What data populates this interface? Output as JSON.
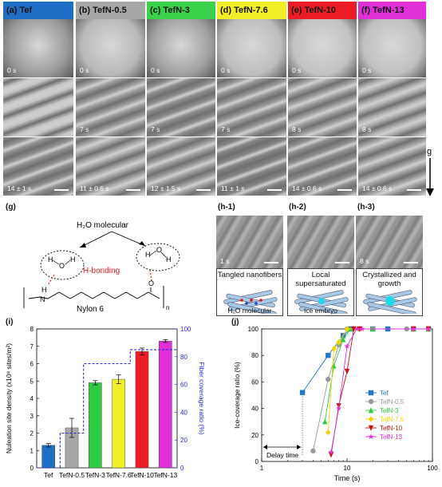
{
  "top_panels": {
    "headers": [
      {
        "label": "(a)   Tef",
        "color": "#1f6ec5"
      },
      {
        "label": "(b) TefN-0.5",
        "color": "#a7a7a7"
      },
      {
        "label": "(c) TefN-3",
        "color": "#39d24a"
      },
      {
        "label": "(d) TefN-7.6",
        "color": "#f2ee27"
      },
      {
        "label": "(e) TefN-10",
        "color": "#ec1c24"
      },
      {
        "label": "(f) TefN-13",
        "color": "#e02fd8"
      }
    ],
    "row0_times": [
      "0 s",
      "0 s",
      "0 s",
      "0 s",
      "0 s",
      "0 s"
    ],
    "row1_times": [
      "",
      "7 s",
      "7 s",
      "7 s",
      "8 s",
      "8 s"
    ],
    "row2_times": [
      "14 ± 1 s",
      "11 ± 0.6 s",
      "12 ± 1.5 s",
      "11 ± 1 s",
      "14 ± 0.6 s",
      "14 ± 0.6 s"
    ],
    "gravity_label": "g"
  },
  "panel_g": {
    "label": "(g)",
    "h2o_label": "H₂O molecular",
    "hbond_label": "H-bonding",
    "polymer_label": "Nylon 6",
    "n_label": "n"
  },
  "panel_h": {
    "labels": [
      "(h-1)",
      "(h-2)",
      "(h-3)"
    ],
    "times": [
      "1 s",
      "",
      "8 s"
    ],
    "h1_caption": "Tangled nanofibers",
    "h1_sub": "H₂O molecular",
    "h2_caption": "Local supersaturated",
    "h2_sub": "Ice embryo",
    "h3_caption": "Crystallized and growth"
  },
  "panel_i": {
    "label": "(i)",
    "chart_data": {
      "type": "bar",
      "categories": [
        "Tef",
        "TefN-0.5",
        "TefN-3",
        "TefN-7.6",
        "TefN-10",
        "TefN-13"
      ],
      "values": [
        1.3,
        2.3,
        4.9,
        5.1,
        6.7,
        7.3
      ],
      "errors": [
        0.1,
        0.55,
        0.12,
        0.25,
        0.2,
        0.08
      ],
      "colors": [
        "#1f6ec5",
        "#a7a7a7",
        "#2ecc40",
        "#f2ee27",
        "#ec1c24",
        "#e02fd8"
      ],
      "ylabel": "Nulеation site density (x10⁸ sites/m²)",
      "ylim": [
        0,
        8
      ],
      "yticks": [
        "0",
        "1",
        "2",
        "3",
        "4",
        "5",
        "6",
        "7",
        "8"
      ],
      "y2label": "Fiber coverage ratio (%)",
      "y2lim": [
        0,
        100
      ],
      "y2ticks": [
        "0",
        "20",
        "40",
        "60",
        "80",
        "100"
      ],
      "coverage": [
        0,
        25,
        75,
        75,
        85,
        85
      ]
    }
  },
  "panel_j": {
    "label": "(j)",
    "chart_data": {
      "type": "scatter",
      "xscale": "log",
      "xlim": [
        1,
        100
      ],
      "xticks": [
        "1",
        "10",
        "100"
      ],
      "xlabel": "Time (s)",
      "ylabel": "Ice-coverage ratio (%)",
      "ylim": [
        0,
        100
      ],
      "yticks": [
        "0",
        "20",
        "40",
        "60",
        "80",
        "100"
      ],
      "annotation": "Delay time",
      "series": [
        {
          "name": "Tef",
          "color": "#2277cc",
          "marker": "square",
          "x": [
            3,
            6,
            9,
            11,
            20,
            30,
            60,
            90
          ],
          "y": [
            52,
            80,
            95,
            100,
            100,
            100,
            100,
            100
          ]
        },
        {
          "name": "TefN-0.5",
          "color": "#999999",
          "marker": "circle",
          "x": [
            4,
            6,
            8,
            10,
            14,
            20,
            50,
            90
          ],
          "y": [
            8,
            62,
            88,
            100,
            100,
            100,
            100,
            100
          ]
        },
        {
          "name": "TefN-3",
          "color": "#2ecc40",
          "marker": "triangle-up",
          "x": [
            5.5,
            7,
            9,
            11,
            20,
            60,
            90
          ],
          "y": [
            30,
            72,
            92,
            100,
            100,
            100,
            100
          ]
        },
        {
          "name": "TefN-7.6",
          "color": "#f2d400",
          "marker": "diamond",
          "x": [
            6,
            7,
            8,
            10,
            14,
            60,
            90
          ],
          "y": [
            22,
            85,
            90,
            100,
            100,
            100,
            100
          ]
        },
        {
          "name": "TefN-10",
          "color": "#cc1111",
          "marker": "triangle-down",
          "x": [
            6.5,
            8,
            10,
            12,
            14,
            60,
            90
          ],
          "y": [
            5,
            42,
            68,
            100,
            100,
            100,
            100
          ]
        },
        {
          "name": "TefN-13",
          "color": "#e02fd8",
          "marker": "star",
          "x": [
            6.5,
            8,
            10,
            13,
            15,
            60,
            90
          ],
          "y": [
            7,
            40,
            87,
            100,
            100,
            100,
            100
          ]
        }
      ]
    }
  }
}
